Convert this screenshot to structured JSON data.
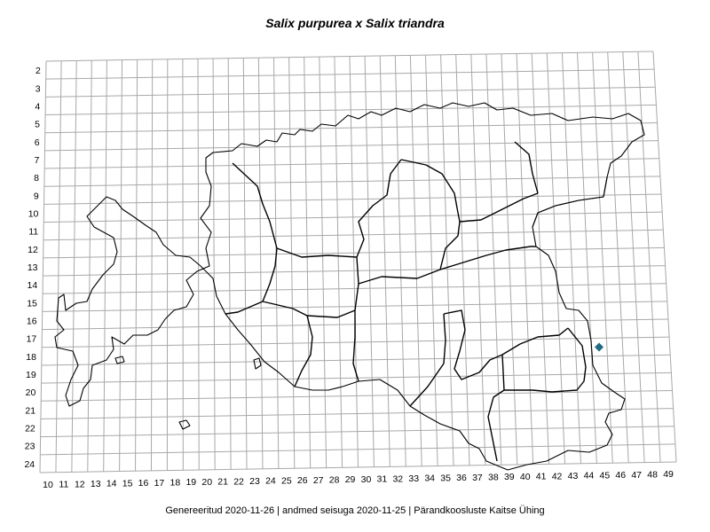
{
  "title": "Salix purpurea x Salix triandra",
  "footer": "Genereeritud 2020-11-26  |  andmed seisuga 2020-11-25  |  Pärandkoosluste Kaitse Ühing",
  "grid": {
    "row_labels": [
      "2",
      "3",
      "4",
      "5",
      "6",
      "7",
      "8",
      "9",
      "10",
      "11",
      "12",
      "13",
      "14",
      "15",
      "16",
      "17",
      "18",
      "19",
      "20",
      "21",
      "22",
      "23",
      "24"
    ],
    "col_labels": [
      "10",
      "11",
      "12",
      "13",
      "14",
      "15",
      "16",
      "17",
      "18",
      "19",
      "20",
      "21",
      "22",
      "23",
      "24",
      "25",
      "26",
      "27",
      "28",
      "29",
      "30",
      "31",
      "32",
      "33",
      "34",
      "35",
      "36",
      "37",
      "38",
      "39",
      "40",
      "41",
      "42",
      "43",
      "44",
      "45",
      "46",
      "47",
      "48",
      "49"
    ],
    "line_color": "#a8a8a8"
  },
  "observations": [
    {
      "col": "45",
      "row": "18",
      "color": "#1f6b84",
      "marker": "diamond"
    }
  ]
}
